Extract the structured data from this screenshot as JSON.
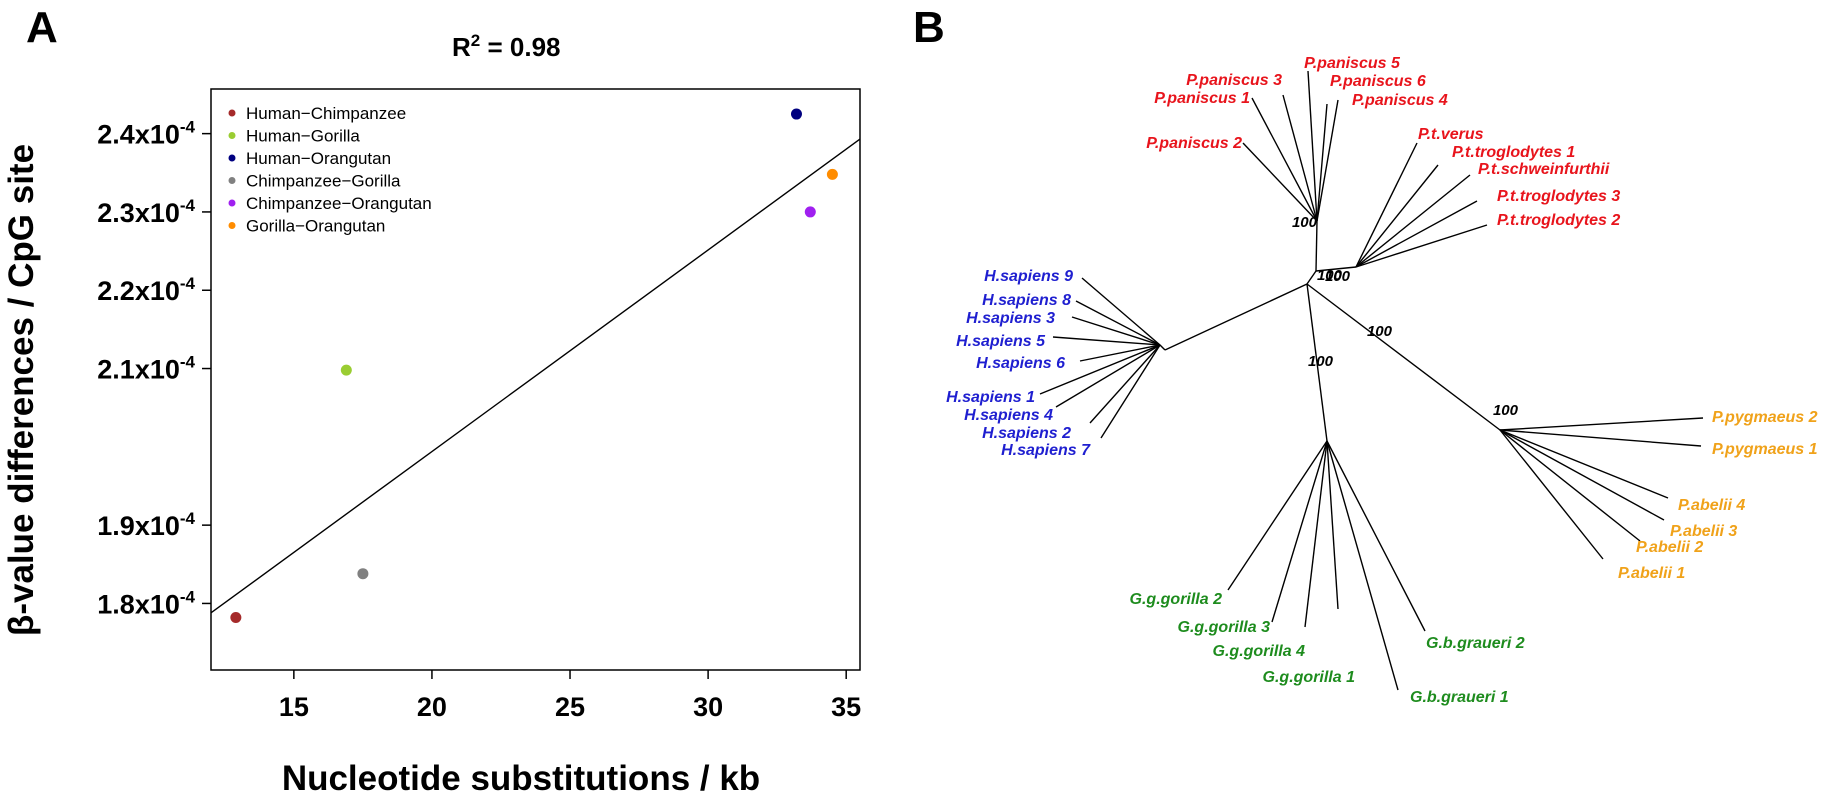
{
  "panel_a": {
    "letter": "A",
    "r2_base": "R",
    "r2_sup": "2",
    "r2_value": " = 0.98"
  },
  "panel_b": {
    "letter": "B"
  },
  "colors": {
    "human": "#1f1fd0",
    "pan": "#e8141c",
    "gorilla": "#1e8c1e",
    "pongo": "#f0a21a",
    "tree": "#000000"
  },
  "chart_data": [
    {
      "type": "scatter",
      "title": "",
      "xlabel": "Nucleotide substitutions / kb",
      "ylabel": "β-value differences / CpG site",
      "xlim": [
        12.0,
        35.5
      ],
      "ylim": [
        1.715,
        2.457
      ],
      "xticks": [
        15,
        20,
        25,
        30,
        35
      ],
      "yticks": [
        1.8,
        1.9,
        2.1,
        2.2,
        2.3,
        2.4
      ],
      "ytick_mantissa": [
        "1.8x10",
        "1.9x10",
        "2.1x10",
        "2.2x10",
        "2.3x10",
        "2.4x10"
      ],
      "ytick_exponent": "-4",
      "grid": false,
      "legend_position": "top-left",
      "points": [
        {
          "label": "Human−Chimpanzee",
          "x": 12.9,
          "y": 1.782,
          "color": "#a52a2a"
        },
        {
          "label": "Human−Gorilla",
          "x": 16.9,
          "y": 2.098,
          "color": "#9acd32"
        },
        {
          "label": "Human−Orangutan",
          "x": 33.2,
          "y": 2.425,
          "color": "#000080"
        },
        {
          "label": "Chimpanzee−Gorilla",
          "x": 17.5,
          "y": 1.838,
          "color": "#808080"
        },
        {
          "label": "Chimpanzee−Orangutan",
          "x": 33.7,
          "y": 2.3,
          "color": "#a020f0"
        },
        {
          "label": "Gorilla−Orangutan",
          "x": 34.5,
          "y": 2.348,
          "color": "#ff8c00"
        }
      ],
      "regression_line": {
        "x": [
          12.0,
          35.5
        ],
        "y": [
          1.788,
          2.393
        ]
      }
    },
    {
      "type": "tree",
      "title": "",
      "bootstrap_labels": [
        "100",
        "100",
        "100",
        "100",
        "100",
        "100"
      ],
      "tips": [
        {
          "label": "P.paniscus 1",
          "group": "pan"
        },
        {
          "label": "P.paniscus 2",
          "group": "pan"
        },
        {
          "label": "P.paniscus 3",
          "group": "pan"
        },
        {
          "label": "P.paniscus 4",
          "group": "pan"
        },
        {
          "label": "P.paniscus 5",
          "group": "pan"
        },
        {
          "label": "P.paniscus 6",
          "group": "pan"
        },
        {
          "label": "P.t.verus",
          "group": "pan"
        },
        {
          "label": "P.t.troglodytes 1",
          "group": "pan"
        },
        {
          "label": "P.t.schweinfurthii",
          "group": "pan"
        },
        {
          "label": "P.t.troglodytes 3",
          "group": "pan"
        },
        {
          "label": "P.t.troglodytes 2",
          "group": "pan"
        },
        {
          "label": "H.sapiens 9",
          "group": "human"
        },
        {
          "label": "H.sapiens 8",
          "group": "human"
        },
        {
          "label": "H.sapiens 3",
          "group": "human"
        },
        {
          "label": "H.sapiens 5",
          "group": "human"
        },
        {
          "label": "H.sapiens 6",
          "group": "human"
        },
        {
          "label": "H.sapiens 1",
          "group": "human"
        },
        {
          "label": "H.sapiens 4",
          "group": "human"
        },
        {
          "label": "H.sapiens 2",
          "group": "human"
        },
        {
          "label": "H.sapiens 7",
          "group": "human"
        },
        {
          "label": "P.pygmaeus 2",
          "group": "pongo"
        },
        {
          "label": "P.pygmaeus 1",
          "group": "pongo"
        },
        {
          "label": "P.abelii 4",
          "group": "pongo"
        },
        {
          "label": "P.abelii 3",
          "group": "pongo"
        },
        {
          "label": "P.abelii 2",
          "group": "pongo"
        },
        {
          "label": "P.abelii 1",
          "group": "pongo"
        },
        {
          "label": "G.g.gorilla 2",
          "group": "gorilla"
        },
        {
          "label": "G.g.gorilla 3",
          "group": "gorilla"
        },
        {
          "label": "G.g.gorilla 4",
          "group": "gorilla"
        },
        {
          "label": "G.g.gorilla 1",
          "group": "gorilla"
        },
        {
          "label": "G.b.graueri 2",
          "group": "gorilla"
        },
        {
          "label": "G.b.graueri 1",
          "group": "gorilla"
        }
      ]
    }
  ]
}
